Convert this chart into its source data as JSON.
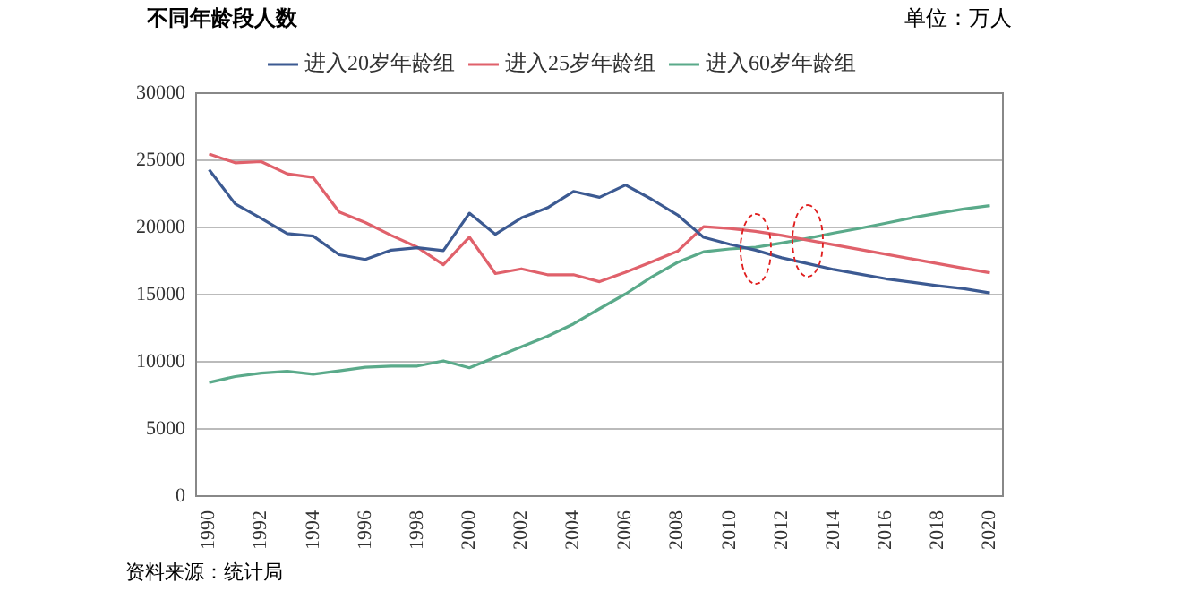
{
  "chart_data": {
    "type": "line",
    "title": "不同年龄段人数",
    "subtitle": "单位：万人",
    "annotations": [
      "资料来源：统计局"
    ],
    "categories": [
      "1990",
      null,
      "1992",
      null,
      "1994",
      null,
      "1996",
      null,
      "1998",
      null,
      "2000",
      null,
      "2002",
      null,
      "2004",
      null,
      "2006",
      null,
      "2008",
      null,
      "2010",
      null,
      "2012",
      null,
      "2014",
      null,
      "2016",
      null,
      "2018",
      null,
      "2020"
    ],
    "series": [
      {
        "name": "进入20岁年龄组",
        "color": "#3c5a92",
        "values": [
          24300,
          21760,
          20670,
          19540,
          19360,
          17970,
          17620,
          18310,
          18490,
          18270,
          21060,
          19490,
          20710,
          21460,
          22680,
          22240,
          23160,
          22100,
          20930,
          19270,
          18750,
          18310,
          17740,
          17310,
          16870,
          16530,
          16180,
          15920,
          15660,
          15440,
          15130
        ]
      },
      {
        "name": "进入25岁年龄组",
        "color": "#e0616b",
        "values": [
          25470,
          24810,
          24900,
          23990,
          23720,
          21150,
          20370,
          19410,
          18530,
          17230,
          19280,
          16570,
          16920,
          16480,
          16480,
          15960,
          16660,
          17440,
          18230,
          20060,
          19930,
          19710,
          19410,
          19060,
          18710,
          18360,
          18010,
          17660,
          17310,
          16960,
          16620
        ]
      },
      {
        "name": "进入60岁年龄组",
        "color": "#5aaa8a",
        "values": [
          8460,
          8900,
          9160,
          9290,
          9070,
          9330,
          9590,
          9680,
          9680,
          10070,
          9550,
          10340,
          11120,
          11900,
          12820,
          13950,
          15050,
          16310,
          17400,
          18190,
          18400,
          18530,
          18840,
          19190,
          19580,
          19930,
          20320,
          20720,
          21060,
          21370,
          21630
        ]
      }
    ],
    "ylim": [
      0,
      30000
    ],
    "yticks": [
      0,
      5000,
      10000,
      15000,
      20000,
      25000,
      30000
    ],
    "grid": "y",
    "legend": "top",
    "marker": "none",
    "line_style": "solid"
  }
}
